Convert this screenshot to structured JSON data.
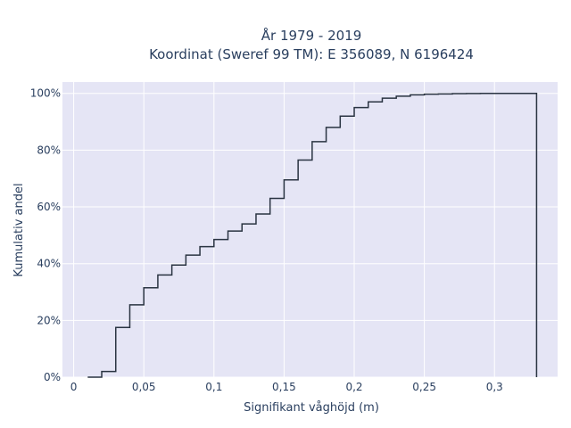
{
  "chart_data": {
    "type": "line",
    "line_shape": "step",
    "title_line1": "År 1979 - 2019",
    "title_line2": "Koordinat (Sweref 99 TM): E 356089, N 6196424",
    "xlabel": "Signifikant våghöjd (m)",
    "ylabel": "Kumulativ andel",
    "xlim": [
      -0.008,
      0.345
    ],
    "ylim": [
      0,
      1.04
    ],
    "x_ticks": [
      0,
      0.05,
      0.1,
      0.15,
      0.2,
      0.25,
      0.3
    ],
    "x_tick_labels": [
      "0",
      "0,05",
      "0,1",
      "0,15",
      "0,2",
      "0,25",
      "0,3"
    ],
    "y_ticks": [
      0,
      0.2,
      0.4,
      0.6,
      0.8,
      1.0
    ],
    "y_tick_labels": [
      "0%",
      "20%",
      "40%",
      "60%",
      "80%",
      "100%"
    ],
    "grid": true,
    "colors": {
      "background": "#e5e5f5",
      "grid": "#ffffff",
      "line": "#2a3442"
    },
    "series": [
      {
        "x": [
          0.01,
          0.02,
          0.03,
          0.04,
          0.05,
          0.06,
          0.07,
          0.08,
          0.09,
          0.1,
          0.11,
          0.12,
          0.13,
          0.14,
          0.15,
          0.16,
          0.17,
          0.18,
          0.19,
          0.2,
          0.21,
          0.22,
          0.23,
          0.24,
          0.25,
          0.26,
          0.27,
          0.28,
          0.29,
          0.3,
          0.31,
          0.32,
          0.33
        ],
        "y": [
          0.0,
          0.02,
          0.175,
          0.255,
          0.315,
          0.36,
          0.395,
          0.43,
          0.46,
          0.485,
          0.515,
          0.54,
          0.575,
          0.63,
          0.695,
          0.765,
          0.83,
          0.88,
          0.92,
          0.95,
          0.97,
          0.983,
          0.99,
          0.995,
          0.997,
          0.998,
          0.999,
          0.9995,
          1.0,
          1.0,
          1.0,
          1.0,
          0.0
        ]
      }
    ]
  }
}
